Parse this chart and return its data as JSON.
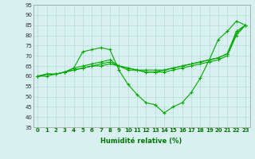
{
  "xlabel": "Humidité relative (%)",
  "background_color": "#d8f0f0",
  "grid_color": "#aad4d4",
  "line_color": "#00aa00",
  "xlim": [
    -0.5,
    23.5
  ],
  "ylim": [
    35,
    95
  ],
  "yticks": [
    35,
    40,
    45,
    50,
    55,
    60,
    65,
    70,
    75,
    80,
    85,
    90,
    95
  ],
  "xticks": [
    0,
    1,
    2,
    3,
    4,
    5,
    6,
    7,
    8,
    9,
    10,
    11,
    12,
    13,
    14,
    15,
    16,
    17,
    18,
    19,
    20,
    21,
    22,
    23
  ],
  "series": [
    [
      60,
      61,
      61,
      62,
      64,
      72,
      73,
      74,
      73,
      63,
      56,
      51,
      47,
      46,
      42,
      45,
      47,
      52,
      59,
      68,
      78,
      82,
      87,
      85
    ],
    [
      60,
      61,
      61,
      62,
      64,
      65,
      66,
      67,
      68,
      65,
      64,
      63,
      63,
      63,
      63,
      64,
      65,
      66,
      67,
      68,
      69,
      71,
      82,
      85
    ],
    [
      60,
      61,
      61,
      62,
      63,
      64,
      65,
      66,
      67,
      65,
      64,
      63,
      62,
      62,
      63,
      64,
      65,
      66,
      67,
      68,
      69,
      71,
      81,
      85
    ],
    [
      60,
      60,
      61,
      62,
      63,
      64,
      65,
      65,
      66,
      65,
      63,
      63,
      62,
      62,
      62,
      63,
      64,
      65,
      66,
      67,
      68,
      70,
      80,
      85
    ]
  ],
  "xlabel_fontsize": 6,
  "tick_fontsize": 5,
  "xlabel_color": "#007700",
  "xtick_color": "#007700",
  "ytick_color": "#333333"
}
